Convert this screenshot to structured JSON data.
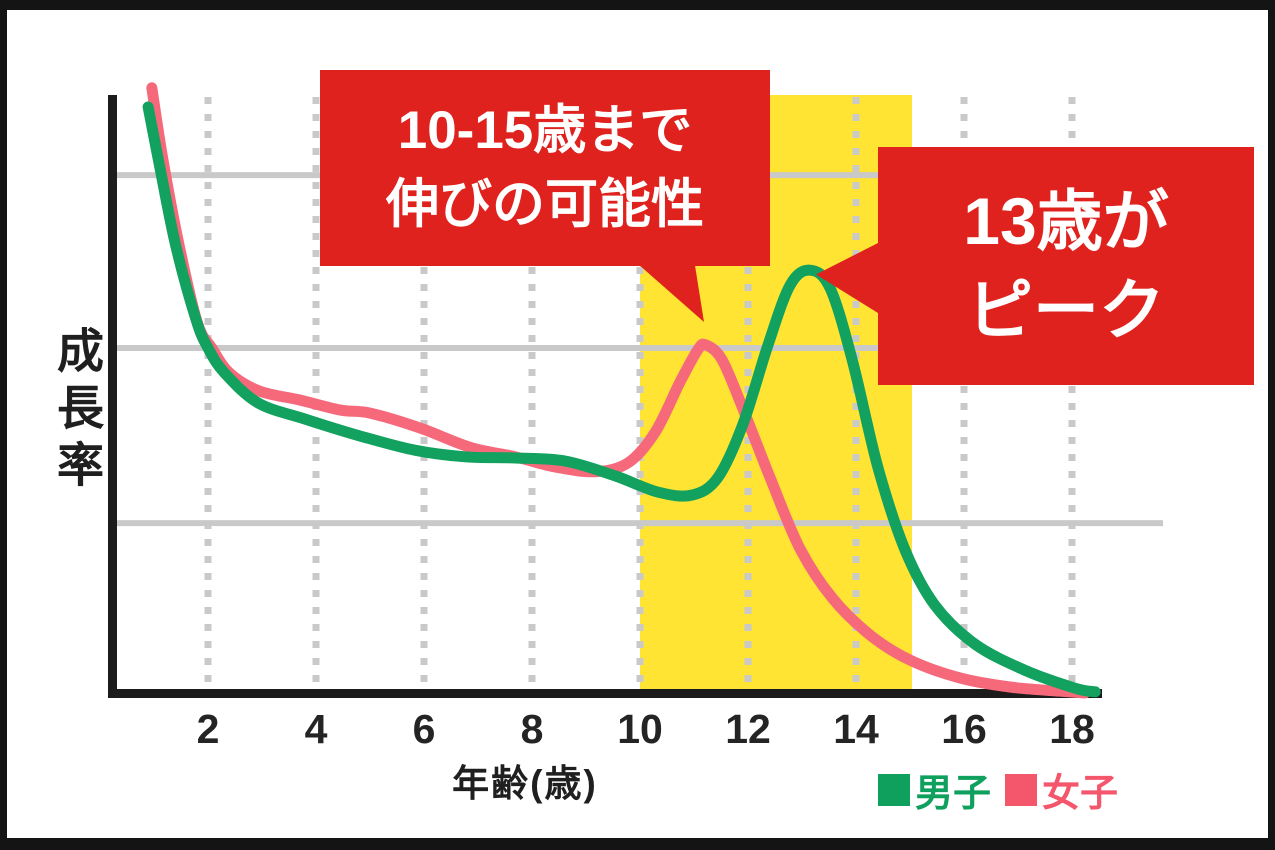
{
  "frame": {
    "edge_color": "#141414",
    "background": "#ffffff"
  },
  "chart": {
    "y_axis_label": "成長率",
    "x_axis_label": "年齢(歳)",
    "axis_color": "#1c1c1c",
    "gridline_color": "#c9c9c9",
    "legend": [
      {
        "label": "男子",
        "color": "#0fa05d"
      },
      {
        "label": "女子",
        "color": "#f4566c"
      }
    ]
  },
  "callouts": {
    "range_note": {
      "line1": "10-15歳まで",
      "line2": "伸びの可能性",
      "bg": "#df221d",
      "text_color": "#ffffff"
    },
    "peak_note": {
      "line1": "13歳が",
      "line2": "ピーク",
      "bg": "#df221d",
      "text_color": "#ffffff"
    }
  },
  "chart_data": {
    "type": "line",
    "title": "",
    "xlabel": "年齢(歳)",
    "ylabel": "成長率",
    "x_ticks": [
      2,
      4,
      6,
      8,
      10,
      12,
      14,
      16,
      18
    ],
    "x_range": [
      0.2,
      19.7
    ],
    "y_range": [
      0,
      100
    ],
    "grid": "on",
    "legend_position": "bottom-right",
    "gridlines_y_values": [
      86.6,
      57.7,
      28.4
    ],
    "highlight_band": {
      "x_from": 10,
      "x_to": 15,
      "color": "#ffe433",
      "label": "10-15歳まで伸びの可能性"
    },
    "annotations": [
      {
        "text": "10-15歳まで伸びの可能性",
        "points_to_age": 11,
        "color": "#df221d"
      },
      {
        "text": "13歳がピーク",
        "points_to_age": 13,
        "series": "男子",
        "color": "#df221d"
      }
    ],
    "series": [
      {
        "name": "女子",
        "color": "#f5697b",
        "peak_age": 11.2,
        "points": [
          [
            0.96,
            101.2
          ],
          [
            1.15,
            90.0
          ],
          [
            1.45,
            75.5
          ],
          [
            1.8,
            62.0
          ],
          [
            2.07,
            57.7
          ],
          [
            2.4,
            53.5
          ],
          [
            2.95,
            50.5
          ],
          [
            3.7,
            49.0
          ],
          [
            4.45,
            47.3
          ],
          [
            5.0,
            46.8
          ],
          [
            5.93,
            44.3
          ],
          [
            6.85,
            41.1
          ],
          [
            7.69,
            39.5
          ],
          [
            8.43,
            37.8
          ],
          [
            9.17,
            37.0
          ],
          [
            9.78,
            38.5
          ],
          [
            10.28,
            43.6
          ],
          [
            10.74,
            52.0
          ],
          [
            11.07,
            57.4
          ],
          [
            11.22,
            58.2
          ],
          [
            11.52,
            55.7
          ],
          [
            11.93,
            47.0
          ],
          [
            12.41,
            36.0
          ],
          [
            12.96,
            24.2
          ],
          [
            13.56,
            15.9
          ],
          [
            14.26,
            9.7
          ],
          [
            15.0,
            5.5
          ],
          [
            15.93,
            2.5
          ],
          [
            16.85,
            1.0
          ],
          [
            17.78,
            0.3
          ],
          [
            18.24,
            0.0
          ]
        ]
      },
      {
        "name": "男子",
        "color": "#12a15e",
        "peak_age": 13.15,
        "points": [
          [
            0.89,
            98.0
          ],
          [
            1.1,
            88.3
          ],
          [
            1.4,
            74.9
          ],
          [
            1.78,
            62.4
          ],
          [
            2.0,
            57.7
          ],
          [
            2.3,
            53.6
          ],
          [
            2.93,
            48.5
          ],
          [
            3.8,
            45.8
          ],
          [
            4.81,
            43.0
          ],
          [
            5.83,
            40.6
          ],
          [
            6.76,
            39.5
          ],
          [
            7.69,
            39.3
          ],
          [
            8.61,
            38.8
          ],
          [
            9.54,
            36.3
          ],
          [
            10.33,
            33.6
          ],
          [
            10.96,
            33.1
          ],
          [
            11.44,
            36.0
          ],
          [
            11.9,
            44.8
          ],
          [
            12.37,
            58.2
          ],
          [
            12.78,
            68.2
          ],
          [
            13.15,
            70.7
          ],
          [
            13.52,
            67.7
          ],
          [
            13.93,
            55.7
          ],
          [
            14.41,
            37.6
          ],
          [
            14.91,
            23.9
          ],
          [
            15.46,
            14.7
          ],
          [
            16.2,
            8.2
          ],
          [
            17.13,
            3.8
          ],
          [
            18.06,
            0.8
          ],
          [
            18.43,
            0.2
          ]
        ]
      }
    ]
  }
}
